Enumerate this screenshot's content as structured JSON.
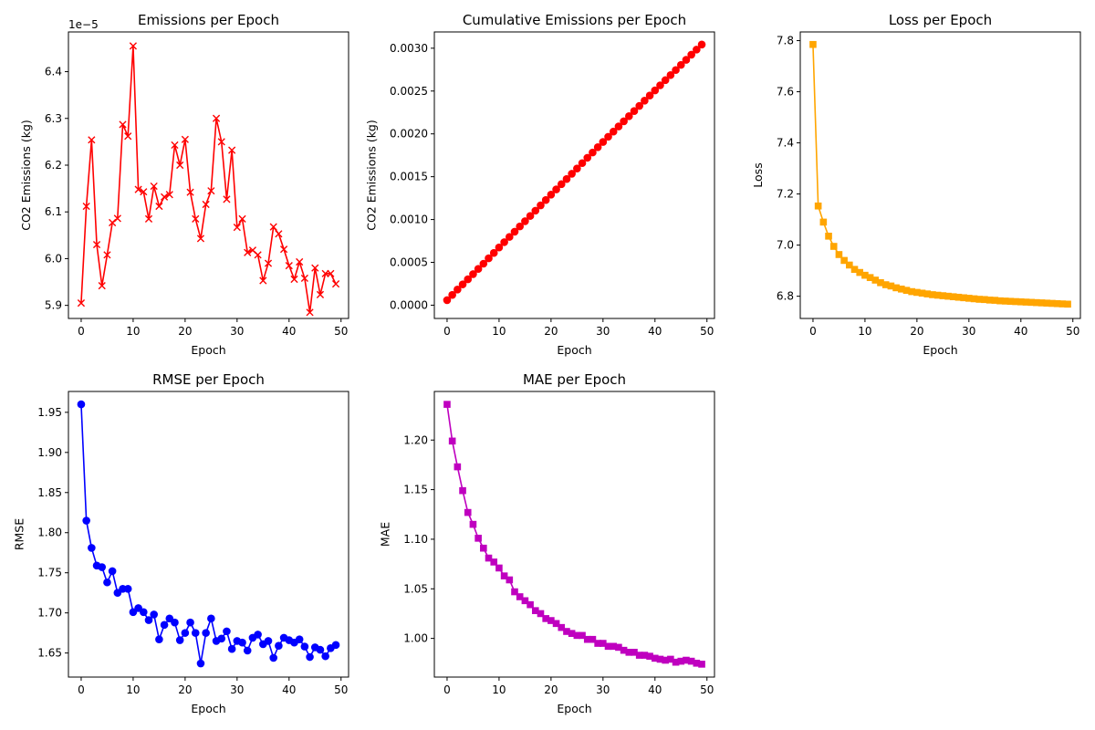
{
  "chart_data": [
    {
      "type": "line",
      "title": "Emissions per Epoch",
      "xlabel": "Epoch",
      "ylabel": "CO2 Emissions (kg)",
      "offset_text": "1e−5",
      "color": "#ff0000",
      "marker": "x",
      "xlim": [
        -2.45,
        51.45
      ],
      "ylim": [
        5.872,
        6.485
      ],
      "xticks": [
        0,
        10,
        20,
        30,
        40,
        50
      ],
      "xtick_labels": [
        "0",
        "10",
        "20",
        "30",
        "40",
        "50"
      ],
      "yticks": [
        5.9,
        6.0,
        6.1,
        6.2,
        6.3,
        6.4
      ],
      "ytick_labels": [
        "5.9",
        "6.0",
        "6.1",
        "6.2",
        "6.3",
        "6.4"
      ],
      "x": [
        0,
        1,
        2,
        3,
        4,
        5,
        6,
        7,
        8,
        9,
        10,
        11,
        12,
        13,
        14,
        15,
        16,
        17,
        18,
        19,
        20,
        21,
        22,
        23,
        24,
        25,
        26,
        27,
        28,
        29,
        30,
        31,
        32,
        33,
        34,
        35,
        36,
        37,
        38,
        39,
        40,
        41,
        42,
        43,
        44,
        45,
        46,
        47,
        48,
        49
      ],
      "values": [
        5.905,
        6.112,
        6.254,
        6.03,
        5.942,
        6.008,
        6.077,
        6.086,
        6.287,
        6.262,
        6.455,
        6.148,
        6.143,
        6.085,
        6.155,
        6.112,
        6.132,
        6.137,
        6.243,
        6.2,
        6.255,
        6.142,
        6.085,
        6.043,
        6.116,
        6.145,
        6.3,
        6.25,
        6.127,
        6.232,
        6.067,
        6.085,
        6.013,
        6.018,
        6.008,
        5.953,
        5.99,
        6.068,
        6.053,
        6.02,
        5.985,
        5.956,
        5.993,
        5.958,
        5.885,
        5.98,
        5.923,
        5.968,
        5.968,
        5.946
      ]
    },
    {
      "type": "line",
      "title": "Cumulative Emissions per Epoch",
      "xlabel": "Epoch",
      "ylabel": "CO2 Emissions (kg)",
      "color": "#ff0000",
      "marker": "o",
      "xlim": [
        -2.45,
        51.45
      ],
      "ylim": [
        -0.000155,
        0.00319
      ],
      "xticks": [
        0,
        10,
        20,
        30,
        40,
        50
      ],
      "xtick_labels": [
        "0",
        "10",
        "20",
        "30",
        "40",
        "50"
      ],
      "yticks": [
        0,
        0.0005,
        0.001,
        0.0015,
        0.002,
        0.0025,
        0.003
      ],
      "ytick_labels": [
        "0.0000",
        "0.0005",
        "0.0010",
        "0.0015",
        "0.0020",
        "0.0025",
        "0.0030"
      ],
      "x": [
        0,
        1,
        2,
        3,
        4,
        5,
        6,
        7,
        8,
        9,
        10,
        11,
        12,
        13,
        14,
        15,
        16,
        17,
        18,
        19,
        20,
        21,
        22,
        23,
        24,
        25,
        26,
        27,
        28,
        29,
        30,
        31,
        32,
        33,
        34,
        35,
        36,
        37,
        38,
        39,
        40,
        41,
        42,
        43,
        44,
        45,
        46,
        47,
        48,
        49
      ],
      "values": [
        5.9e-05,
        0.0001201,
        0.0001827,
        0.000243,
        0.0003024,
        0.0003625,
        0.0004233,
        0.0004841,
        0.000547,
        0.0006096,
        0.0006742,
        0.0007357,
        0.0007971,
        0.000858,
        0.0009195,
        0.0009806,
        0.0010419,
        0.0011033,
        0.0011657,
        0.0012277,
        0.0012903,
        0.0013517,
        0.0014126,
        0.001473,
        0.0015342,
        0.0015956,
        0.0016586,
        0.0017211,
        0.0017824,
        0.0018447,
        0.0019054,
        0.0019662,
        0.0020264,
        0.0020865,
        0.0021466,
        0.0022062,
        0.0022661,
        0.0023268,
        0.0023873,
        0.0024475,
        0.0025074,
        0.0025669,
        0.0026269,
        0.0026865,
        0.0027453,
        0.0028051,
        0.0028644,
        0.002924,
        0.0029837,
        0.0030432
      ]
    },
    {
      "type": "line",
      "title": "Loss per Epoch",
      "xlabel": "Epoch",
      "ylabel": "Loss",
      "color": "#ffa500",
      "marker": "s",
      "xlim": [
        -2.45,
        51.45
      ],
      "ylim": [
        6.713,
        7.834
      ],
      "xticks": [
        0,
        10,
        20,
        30,
        40,
        50
      ],
      "xtick_labels": [
        "0",
        "10",
        "20",
        "30",
        "40",
        "50"
      ],
      "yticks": [
        6.8,
        7.0,
        7.2,
        7.4,
        7.6,
        7.8
      ],
      "ytick_labels": [
        "6.8",
        "7.0",
        "7.2",
        "7.4",
        "7.6",
        "7.8"
      ],
      "x": [
        0,
        1,
        2,
        3,
        4,
        5,
        6,
        7,
        8,
        9,
        10,
        11,
        12,
        13,
        14,
        15,
        16,
        17,
        18,
        19,
        20,
        21,
        22,
        23,
        24,
        25,
        26,
        27,
        28,
        29,
        30,
        31,
        32,
        33,
        34,
        35,
        36,
        37,
        38,
        39,
        40,
        41,
        42,
        43,
        44,
        45,
        46,
        47,
        48,
        49
      ],
      "values": [
        7.785,
        7.153,
        7.09,
        7.035,
        6.995,
        6.963,
        6.94,
        6.922,
        6.905,
        6.893,
        6.882,
        6.873,
        6.863,
        6.853,
        6.845,
        6.84,
        6.833,
        6.828,
        6.823,
        6.818,
        6.815,
        6.812,
        6.809,
        6.806,
        6.804,
        6.802,
        6.8,
        6.798,
        6.796,
        6.794,
        6.792,
        6.79,
        6.788,
        6.787,
        6.785,
        6.784,
        6.782,
        6.781,
        6.78,
        6.779,
        6.778,
        6.777,
        6.776,
        6.775,
        6.774,
        6.773,
        6.772,
        6.771,
        6.77,
        6.769
      ]
    },
    {
      "type": "line",
      "title": "RMSE per Epoch",
      "xlabel": "Epoch",
      "ylabel": "RMSE",
      "color": "#0000ff",
      "marker": "o",
      "xlim": [
        -2.45,
        51.45
      ],
      "ylim": [
        1.62,
        1.976
      ],
      "xticks": [
        0,
        10,
        20,
        30,
        40,
        50
      ],
      "xtick_labels": [
        "0",
        "10",
        "20",
        "30",
        "40",
        "50"
      ],
      "yticks": [
        1.65,
        1.7,
        1.75,
        1.8,
        1.85,
        1.9,
        1.95
      ],
      "ytick_labels": [
        "1.65",
        "1.70",
        "1.75",
        "1.80",
        "1.85",
        "1.90",
        "1.95"
      ],
      "x": [
        0,
        1,
        2,
        3,
        4,
        5,
        6,
        7,
        8,
        9,
        10,
        11,
        12,
        13,
        14,
        15,
        16,
        17,
        18,
        19,
        20,
        21,
        22,
        23,
        24,
        25,
        26,
        27,
        28,
        29,
        30,
        31,
        32,
        33,
        34,
        35,
        36,
        37,
        38,
        39,
        40,
        41,
        42,
        43,
        44,
        45,
        46,
        47,
        48,
        49
      ],
      "values": [
        1.96,
        1.815,
        1.781,
        1.759,
        1.757,
        1.738,
        1.752,
        1.725,
        1.73,
        1.73,
        1.701,
        1.706,
        1.701,
        1.691,
        1.698,
        1.667,
        1.685,
        1.693,
        1.688,
        1.666,
        1.675,
        1.688,
        1.675,
        1.637,
        1.675,
        1.693,
        1.665,
        1.668,
        1.677,
        1.655,
        1.665,
        1.663,
        1.653,
        1.669,
        1.673,
        1.661,
        1.665,
        1.644,
        1.659,
        1.669,
        1.666,
        1.663,
        1.667,
        1.658,
        1.645,
        1.657,
        1.654,
        1.646,
        1.656,
        1.66
      ]
    },
    {
      "type": "line",
      "title": "MAE per Epoch",
      "xlabel": "Epoch",
      "ylabel": "MAE",
      "color": "#bf00bf",
      "marker": "s",
      "xlim": [
        -2.45,
        51.45
      ],
      "ylim": [
        0.961,
        1.249
      ],
      "xticks": [
        0,
        10,
        20,
        30,
        40,
        50
      ],
      "xtick_labels": [
        "0",
        "10",
        "20",
        "30",
        "40",
        "50"
      ],
      "yticks": [
        1.0,
        1.05,
        1.1,
        1.15,
        1.2
      ],
      "ytick_labels": [
        "1.00",
        "1.05",
        "1.10",
        "1.15",
        "1.20"
      ],
      "x": [
        0,
        1,
        2,
        3,
        4,
        5,
        6,
        7,
        8,
        9,
        10,
        11,
        12,
        13,
        14,
        15,
        16,
        17,
        18,
        19,
        20,
        21,
        22,
        23,
        24,
        25,
        26,
        27,
        28,
        29,
        30,
        31,
        32,
        33,
        34,
        35,
        36,
        37,
        38,
        39,
        40,
        41,
        42,
        43,
        44,
        45,
        46,
        47,
        48,
        49
      ],
      "values": [
        1.236,
        1.199,
        1.173,
        1.149,
        1.127,
        1.115,
        1.101,
        1.091,
        1.081,
        1.077,
        1.071,
        1.063,
        1.059,
        1.047,
        1.042,
        1.038,
        1.034,
        1.028,
        1.025,
        1.02,
        1.018,
        1.015,
        1.011,
        1.007,
        1.005,
        1.003,
        1.003,
        0.999,
        0.999,
        0.995,
        0.995,
        0.992,
        0.992,
        0.991,
        0.988,
        0.986,
        0.986,
        0.983,
        0.983,
        0.982,
        0.98,
        0.979,
        0.978,
        0.979,
        0.976,
        0.977,
        0.978,
        0.977,
        0.975,
        0.974
      ]
    }
  ]
}
